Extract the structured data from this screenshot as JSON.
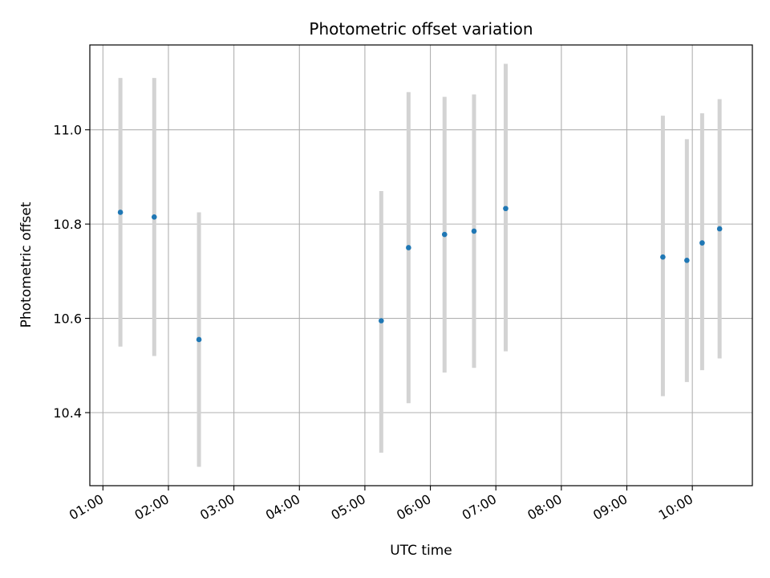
{
  "chart_data": {
    "type": "scatter",
    "title": "Photometric offset variation",
    "xlabel": "UTC time",
    "ylabel": "Photometric offset",
    "x_axis": "time (hours UTC)",
    "xlim": [
      "00:48",
      "10:55"
    ],
    "ylim": [
      10.245,
      11.18
    ],
    "x_ticks": [
      "01:00",
      "02:00",
      "03:00",
      "04:00",
      "05:00",
      "06:00",
      "07:00",
      "08:00",
      "09:00",
      "10:00"
    ],
    "y_ticks": [
      "10.4",
      "10.6",
      "10.8",
      "11.0"
    ],
    "grid": true,
    "legend": "none",
    "colors": {
      "points": "#1f77b4",
      "errorbars": "#d3d3d3",
      "grid": "#b0b0b0"
    },
    "series": [
      {
        "points": [
          {
            "x": "01:16",
            "y": 10.825,
            "y_low": 10.54,
            "y_high": 11.11
          },
          {
            "x": "01:47",
            "y": 10.815,
            "y_low": 10.52,
            "y_high": 11.11
          },
          {
            "x": "02:28",
            "y": 10.555,
            "y_low": 10.285,
            "y_high": 10.825
          },
          {
            "x": "05:15",
            "y": 10.595,
            "y_low": 10.315,
            "y_high": 10.87
          },
          {
            "x": "05:40",
            "y": 10.75,
            "y_low": 10.42,
            "y_high": 11.08
          },
          {
            "x": "06:13",
            "y": 10.778,
            "y_low": 10.485,
            "y_high": 11.07
          },
          {
            "x": "06:40",
            "y": 10.785,
            "y_low": 10.495,
            "y_high": 11.075
          },
          {
            "x": "07:09",
            "y": 10.833,
            "y_low": 10.53,
            "y_high": 11.14
          },
          {
            "x": "09:33",
            "y": 10.73,
            "y_low": 10.435,
            "y_high": 11.03
          },
          {
            "x": "09:55",
            "y": 10.723,
            "y_low": 10.465,
            "y_high": 10.98
          },
          {
            "x": "10:09",
            "y": 10.76,
            "y_low": 10.49,
            "y_high": 11.035
          },
          {
            "x": "10:25",
            "y": 10.79,
            "y_low": 10.515,
            "y_high": 11.065
          }
        ]
      }
    ]
  }
}
